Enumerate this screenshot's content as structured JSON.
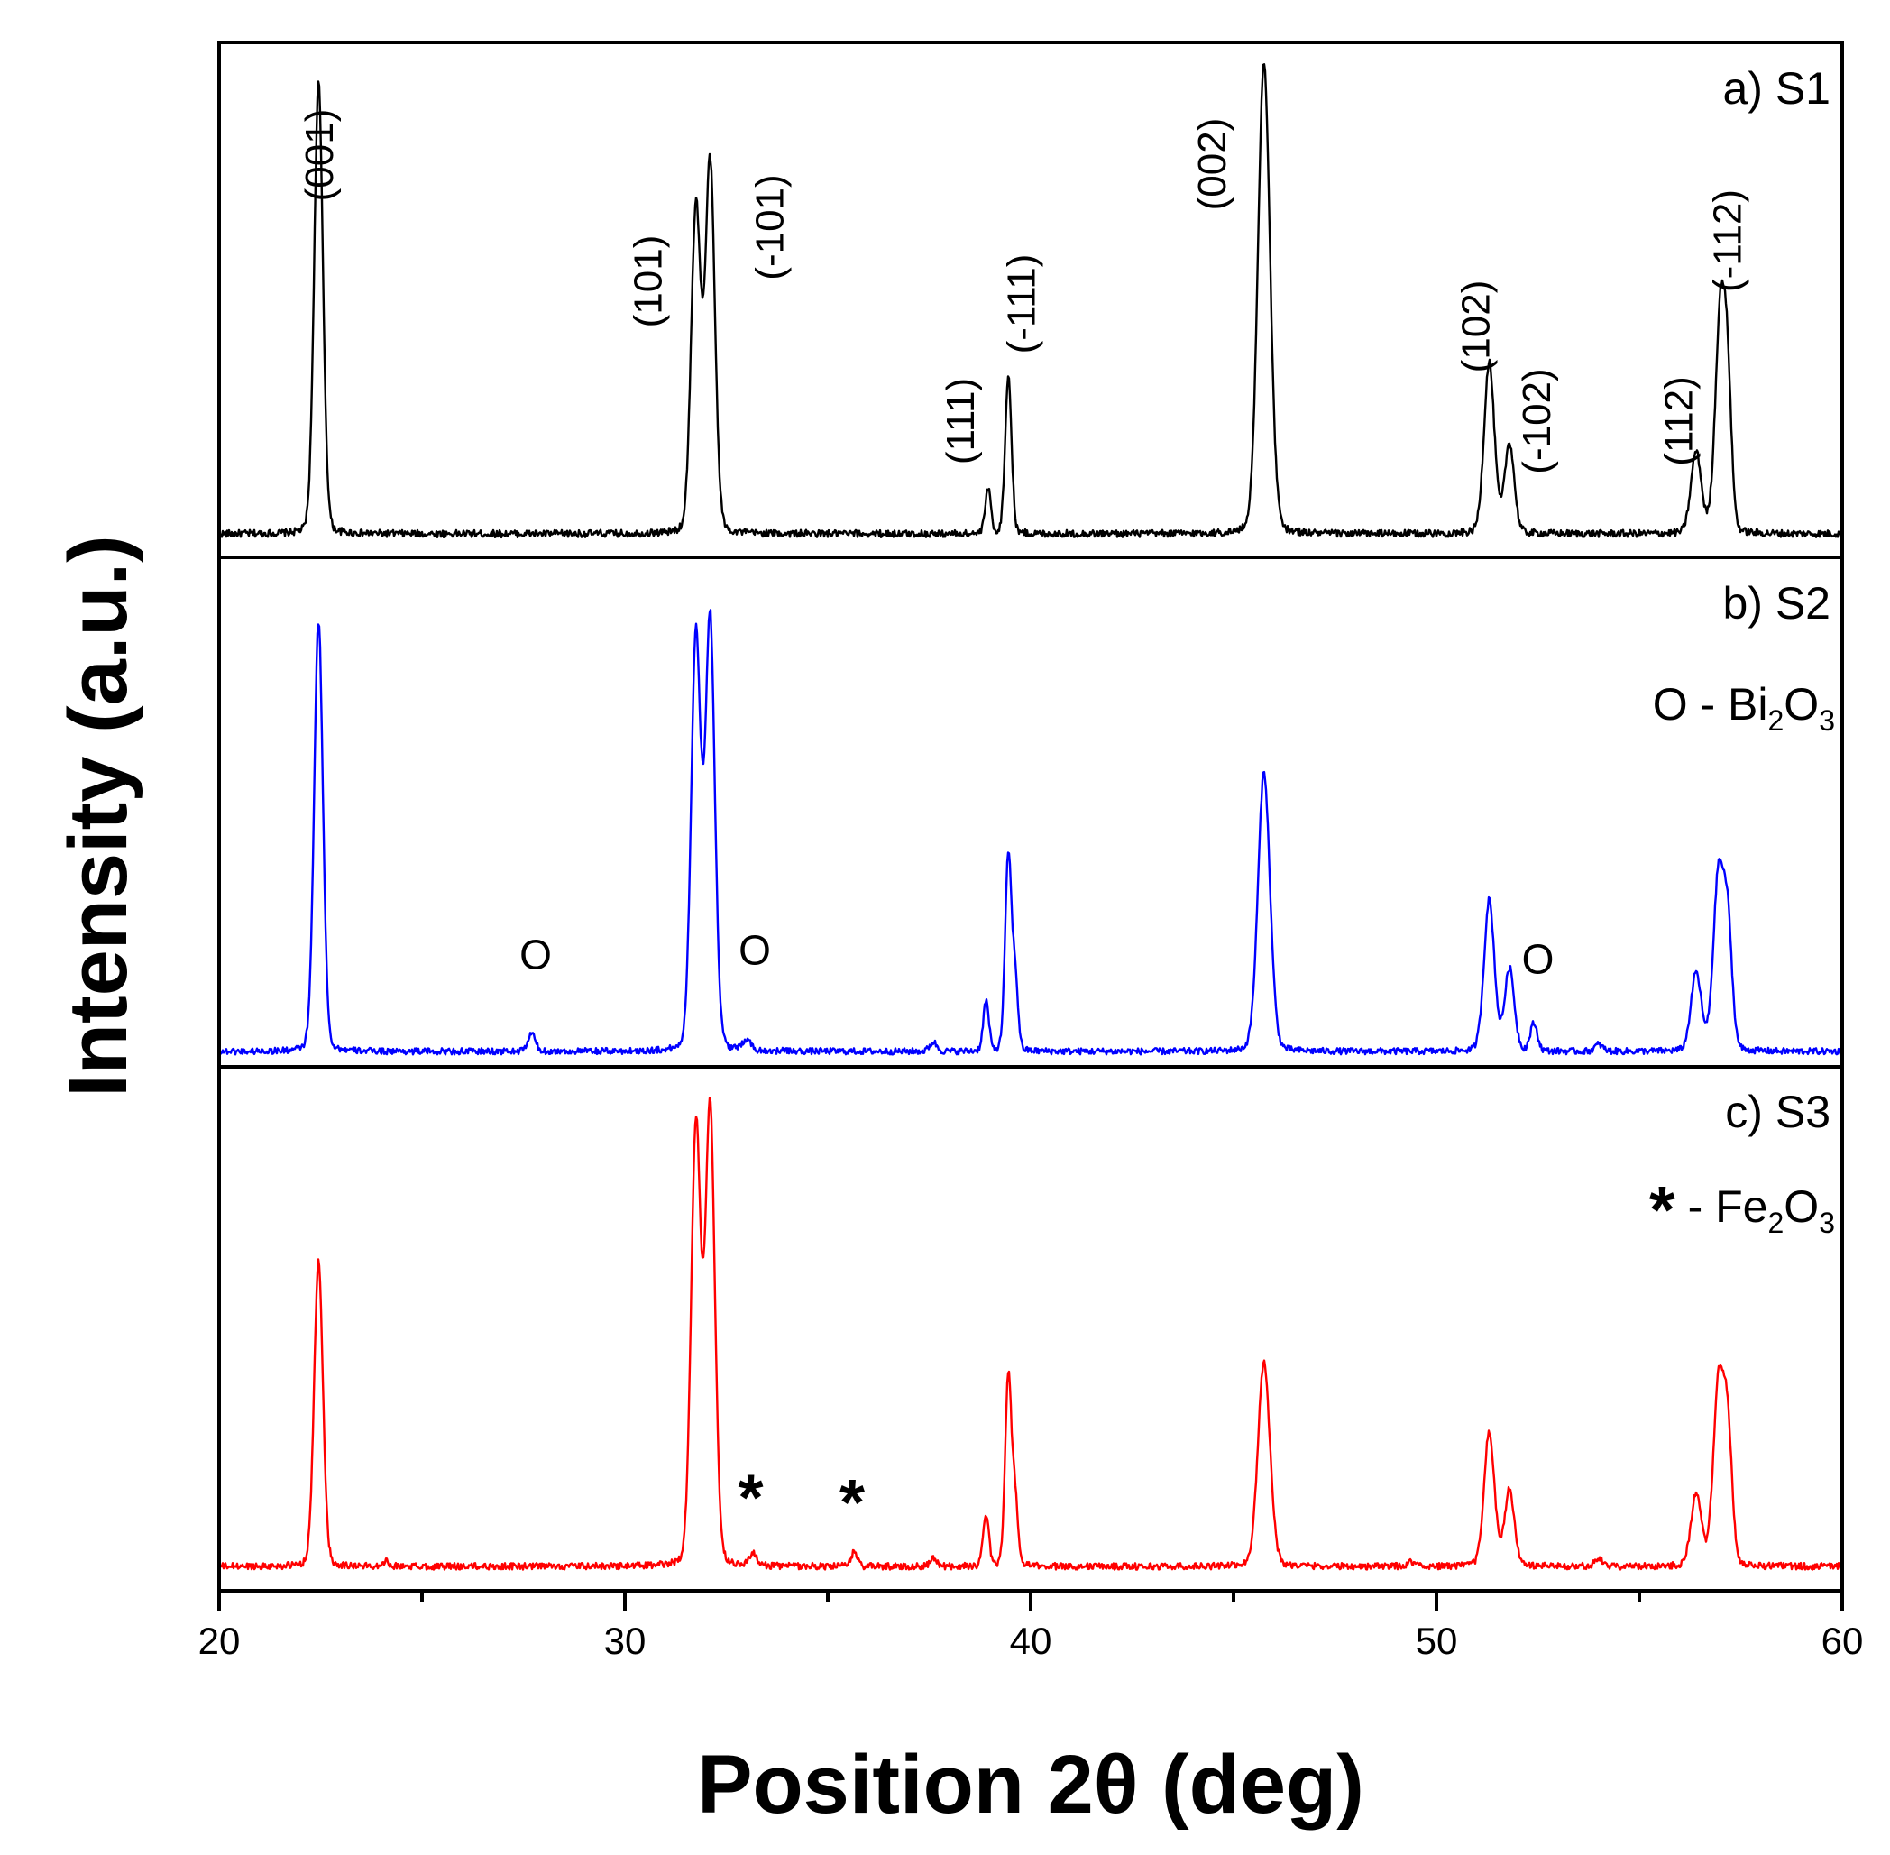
{
  "chart_data": {
    "type": "line",
    "xlabel": "Position 2θ (deg)",
    "ylabel": "Intensity (a.u.)",
    "xlim": [
      20,
      60
    ],
    "xticks": [
      20,
      30,
      40,
      50,
      60
    ],
    "xtick_labels": [
      "20",
      "30",
      "40",
      "50",
      "60"
    ],
    "panels": [
      {
        "id": "s1",
        "title": "a) S1",
        "color": "#000000",
        "noise": 0.008,
        "peaks": [
          {
            "x": 22.45,
            "h": 1.0,
            "w": 0.11
          },
          {
            "x": 31.75,
            "h": 0.72,
            "w": 0.12
          },
          {
            "x": 32.1,
            "h": 0.82,
            "w": 0.12
          },
          {
            "x": 38.95,
            "h": 0.1,
            "w": 0.07
          },
          {
            "x": 39.45,
            "h": 0.35,
            "w": 0.08
          },
          {
            "x": 45.75,
            "h": 1.05,
            "w": 0.15
          },
          {
            "x": 51.3,
            "h": 0.38,
            "w": 0.13
          },
          {
            "x": 51.8,
            "h": 0.2,
            "w": 0.12
          },
          {
            "x": 56.4,
            "h": 0.18,
            "w": 0.13
          },
          {
            "x": 57.0,
            "h": 0.49,
            "w": 0.13
          },
          {
            "x": 57.18,
            "h": 0.26,
            "w": 0.1
          }
        ],
        "annotations": [
          {
            "label": "(001)",
            "x": 22.8,
            "y": 0.84
          },
          {
            "label": "(101)",
            "x": 30.9,
            "y": 0.56
          },
          {
            "label": "(-101)",
            "x": 33.9,
            "y": 0.68
          },
          {
            "label": "(111)",
            "x": 38.6,
            "y": 0.25
          },
          {
            "label": "(-111)",
            "x": 40.1,
            "y": 0.51
          },
          {
            "label": "(002)",
            "x": 44.8,
            "y": 0.82
          },
          {
            "label": "(102)",
            "x": 51.3,
            "y": 0.46
          },
          {
            "label": "(-102)",
            "x": 52.8,
            "y": 0.25
          },
          {
            "label": "(112)",
            "x": 56.3,
            "y": 0.25
          },
          {
            "label": "(-112)",
            "x": 57.5,
            "y": 0.65
          }
        ]
      },
      {
        "id": "s2",
        "title": "b) S2",
        "legend": {
          "symbol": "O",
          "prefix": " - Bi",
          "sub1": "2",
          "mid": "O",
          "sub2": "3"
        },
        "color": "#0000ff",
        "noise": 0.007,
        "peaks": [
          {
            "x": 22.45,
            "h": 0.94,
            "w": 0.11
          },
          {
            "x": 27.7,
            "h": 0.04,
            "w": 0.09
          },
          {
            "x": 31.75,
            "h": 0.9,
            "w": 0.12
          },
          {
            "x": 32.1,
            "h": 0.94,
            "w": 0.12
          },
          {
            "x": 33.0,
            "h": 0.025,
            "w": 0.1
          },
          {
            "x": 37.6,
            "h": 0.02,
            "w": 0.09
          },
          {
            "x": 38.9,
            "h": 0.11,
            "w": 0.07
          },
          {
            "x": 39.45,
            "h": 0.43,
            "w": 0.08
          },
          {
            "x": 39.62,
            "h": 0.15,
            "w": 0.07
          },
          {
            "x": 45.75,
            "h": 0.61,
            "w": 0.15
          },
          {
            "x": 51.3,
            "h": 0.33,
            "w": 0.13
          },
          {
            "x": 51.8,
            "h": 0.18,
            "w": 0.12
          },
          {
            "x": 52.4,
            "h": 0.06,
            "w": 0.09
          },
          {
            "x": 54.0,
            "h": 0.015,
            "w": 0.1
          },
          {
            "x": 56.4,
            "h": 0.17,
            "w": 0.13
          },
          {
            "x": 56.95,
            "h": 0.38,
            "w": 0.13
          },
          {
            "x": 57.18,
            "h": 0.26,
            "w": 0.11
          }
        ],
        "markers": [
          {
            "label": "O",
            "x": 27.8,
            "y": 0.18
          },
          {
            "label": "O",
            "x": 33.2,
            "y": 0.19
          },
          {
            "label": "O",
            "x": 52.5,
            "y": 0.17
          }
        ]
      },
      {
        "id": "s3",
        "title": "c) S3",
        "legend": {
          "symbol": "*",
          "prefix": " - Fe",
          "sub1": "2",
          "mid": "O",
          "sub2": "3"
        },
        "color": "#ff0000",
        "noise": 0.007,
        "peaks": [
          {
            "x": 22.45,
            "h": 0.64,
            "w": 0.11
          },
          {
            "x": 24.1,
            "h": 0.01,
            "w": 0.1
          },
          {
            "x": 31.75,
            "h": 0.92,
            "w": 0.12
          },
          {
            "x": 32.1,
            "h": 0.96,
            "w": 0.12
          },
          {
            "x": 33.15,
            "h": 0.025,
            "w": 0.09
          },
          {
            "x": 35.65,
            "h": 0.03,
            "w": 0.08
          },
          {
            "x": 37.6,
            "h": 0.015,
            "w": 0.09
          },
          {
            "x": 38.9,
            "h": 0.11,
            "w": 0.07
          },
          {
            "x": 39.45,
            "h": 0.4,
            "w": 0.08
          },
          {
            "x": 39.62,
            "h": 0.13,
            "w": 0.07
          },
          {
            "x": 45.75,
            "h": 0.43,
            "w": 0.15
          },
          {
            "x": 49.4,
            "h": 0.01,
            "w": 0.1
          },
          {
            "x": 51.3,
            "h": 0.28,
            "w": 0.13
          },
          {
            "x": 51.8,
            "h": 0.16,
            "w": 0.12
          },
          {
            "x": 54.0,
            "h": 0.015,
            "w": 0.1
          },
          {
            "x": 56.4,
            "h": 0.15,
            "w": 0.13
          },
          {
            "x": 56.95,
            "h": 0.38,
            "w": 0.13
          },
          {
            "x": 57.18,
            "h": 0.27,
            "w": 0.11
          }
        ],
        "markers": [
          {
            "label": "*",
            "x": 33.1,
            "y": 0.15
          },
          {
            "label": "*",
            "x": 35.6,
            "y": 0.14
          }
        ]
      }
    ]
  }
}
